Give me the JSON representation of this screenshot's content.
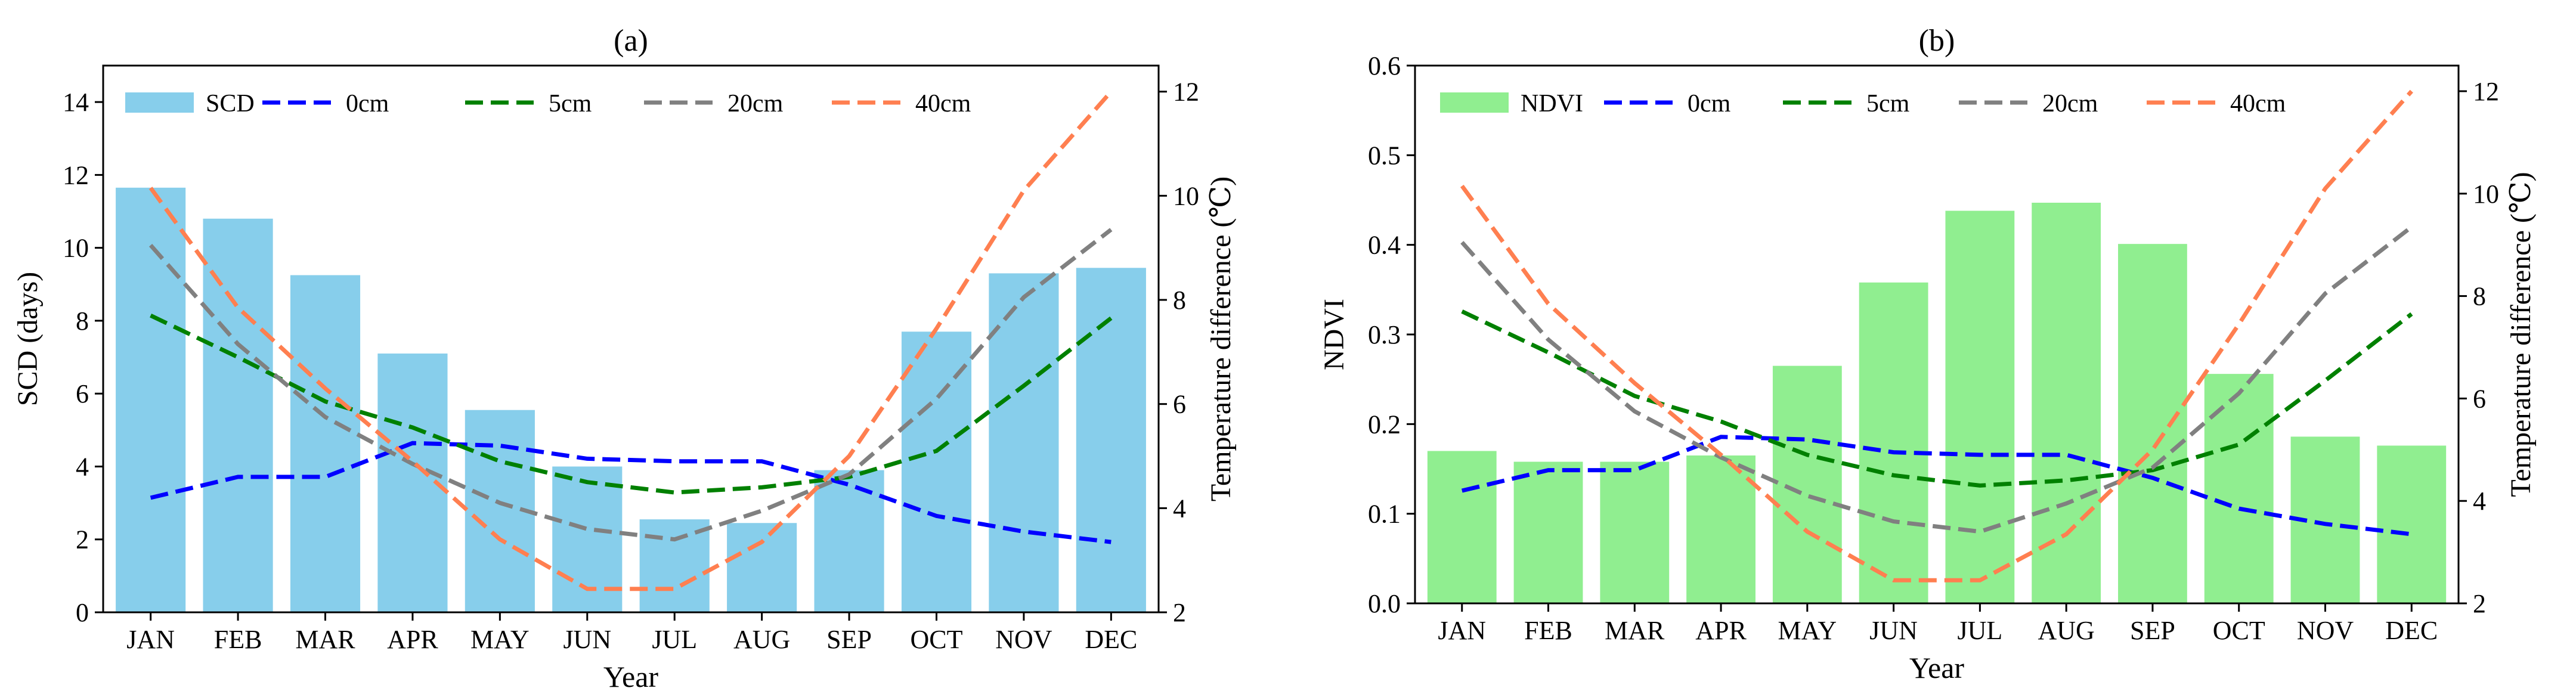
{
  "colors": {
    "scd": "#87CEEB",
    "ndvi": "#90EE90",
    "0cm": "#0000FF",
    "5cm": "#008000",
    "20cm": "#808080",
    "40cm": "#FF7F50"
  },
  "chart_data": [
    {
      "type": "bar+line",
      "title": "(a)",
      "xlabel": "Year",
      "ylabel": "SCD (days)",
      "ylabel_right": "Temperature difference (℃)",
      "categories": [
        "JAN",
        "FEB",
        "MAR",
        "APR",
        "MAY",
        "JUN",
        "JUL",
        "AUG",
        "SEP",
        "OCT",
        "NOV",
        "DEC"
      ],
      "ylim": [
        0,
        15
      ],
      "yticks": [
        "0",
        "2",
        "4",
        "6",
        "8",
        "10",
        "12",
        "14"
      ],
      "ylim_right": [
        2,
        12.5
      ],
      "yticks_right": [
        "2",
        "4",
        "6",
        "8",
        "10",
        "12"
      ],
      "bar_series": {
        "name": "SCD",
        "values": [
          11.65,
          10.8,
          9.25,
          7.1,
          5.55,
          4.0,
          2.55,
          2.45,
          3.9,
          7.7,
          9.3,
          9.45
        ]
      },
      "line_series": [
        {
          "name": "0cm",
          "values": [
            4.2,
            4.6,
            4.6,
            5.25,
            5.2,
            4.95,
            4.9,
            4.9,
            4.45,
            3.85,
            3.55,
            3.35
          ]
        },
        {
          "name": "5cm",
          "values": [
            7.7,
            6.9,
            6.05,
            5.55,
            4.9,
            4.5,
            4.3,
            4.4,
            4.6,
            5.1,
            6.35,
            7.65
          ]
        },
        {
          "name": "20cm",
          "values": [
            9.05,
            7.15,
            5.75,
            4.85,
            4.1,
            3.6,
            3.4,
            3.95,
            4.65,
            6.1,
            8.05,
            9.35
          ]
        },
        {
          "name": "40cm",
          "values": [
            10.15,
            7.85,
            6.3,
            4.9,
            3.4,
            2.45,
            2.45,
            3.35,
            5.0,
            7.45,
            10.1,
            12.0
          ]
        }
      ]
    },
    {
      "type": "bar+line",
      "title": "(b)",
      "xlabel": "Year",
      "ylabel": "NDVI",
      "ylabel_right": "Temperature difference (℃)",
      "categories": [
        "JAN",
        "FEB",
        "MAR",
        "APR",
        "MAY",
        "JUN",
        "JUL",
        "AUG",
        "SEP",
        "OCT",
        "NOV",
        "DEC"
      ],
      "ylim": [
        0,
        0.6
      ],
      "yticks": [
        "0.0",
        "0.1",
        "0.2",
        "0.3",
        "0.4",
        "0.5",
        "0.6"
      ],
      "ylim_right": [
        2,
        12.5
      ],
      "yticks_right": [
        "2",
        "4",
        "6",
        "8",
        "10",
        "12"
      ],
      "bar_series": {
        "name": "NDVI",
        "values": [
          0.17,
          0.158,
          0.158,
          0.165,
          0.265,
          0.358,
          0.438,
          0.447,
          0.401,
          0.256,
          0.186,
          0.176
        ]
      },
      "line_series": [
        {
          "name": "0cm",
          "values": [
            4.2,
            4.6,
            4.6,
            5.25,
            5.2,
            4.95,
            4.9,
            4.9,
            4.45,
            3.85,
            3.55,
            3.35
          ]
        },
        {
          "name": "5cm",
          "values": [
            7.7,
            6.9,
            6.05,
            5.55,
            4.9,
            4.5,
            4.3,
            4.4,
            4.6,
            5.1,
            6.35,
            7.65
          ]
        },
        {
          "name": "20cm",
          "values": [
            9.05,
            7.15,
            5.75,
            4.85,
            4.1,
            3.6,
            3.4,
            3.95,
            4.65,
            6.1,
            8.05,
            9.35
          ]
        },
        {
          "name": "40cm",
          "values": [
            10.15,
            7.85,
            6.3,
            4.9,
            3.4,
            2.45,
            2.45,
            3.35,
            5.0,
            7.45,
            10.1,
            12.0
          ]
        }
      ]
    }
  ]
}
